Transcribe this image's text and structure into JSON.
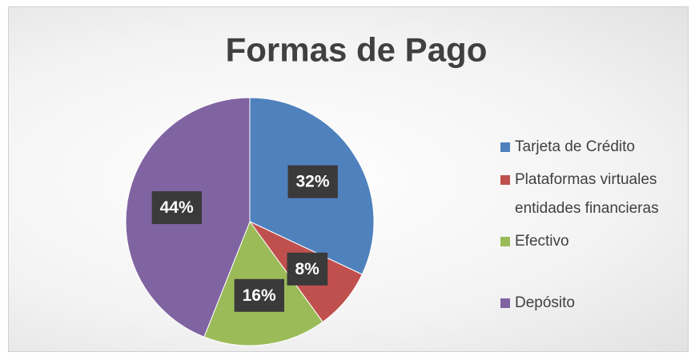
{
  "chart_data": {
    "type": "pie",
    "title": "Formas de Pago",
    "categories": [
      "Tarjeta de Crédito",
      "Plataformas virtuales entidades financieras",
      "Efectivo",
      "Depósito"
    ],
    "values": [
      32,
      8,
      16,
      44
    ],
    "value_labels": [
      "32%",
      "8%",
      "16%",
      "44%"
    ],
    "colors": [
      "#4f81bd",
      "#c0504d",
      "#9bbb59",
      "#8064a2"
    ],
    "legend": "right"
  }
}
